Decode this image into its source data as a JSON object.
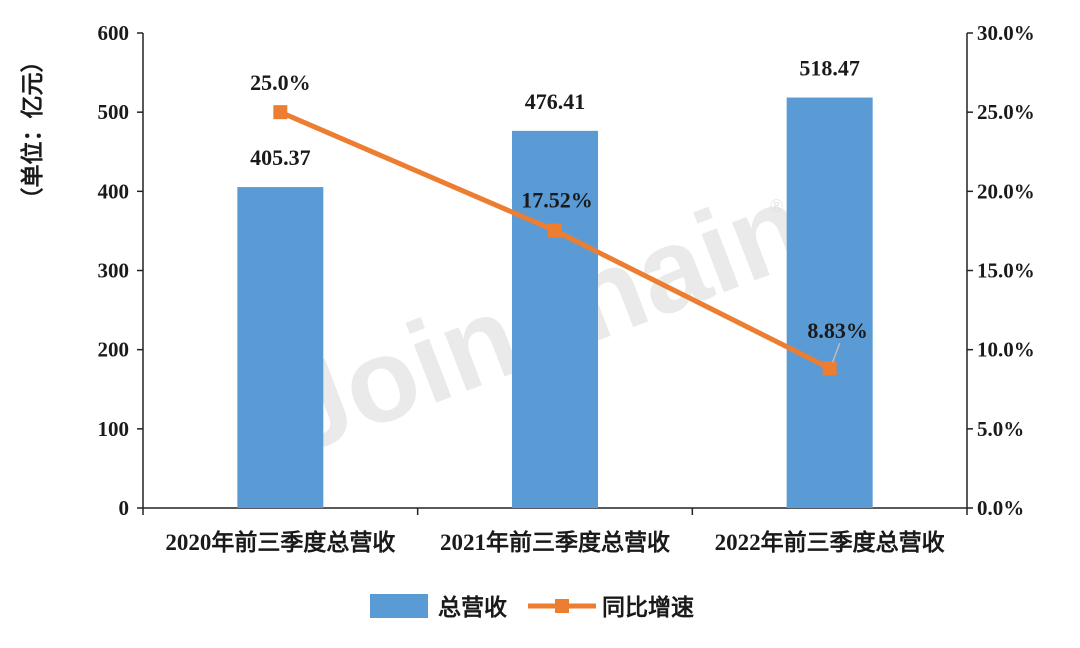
{
  "chart_data": {
    "type": "bar",
    "categories": [
      "2020年前三季度总营收",
      "2021年前三季度总营收",
      "2022年前三季度总营收"
    ],
    "series": [
      {
        "name": "总营收",
        "type": "bar",
        "axis": "left",
        "values": [
          405.37,
          476.41,
          518.47
        ],
        "labels": [
          "405.37",
          "476.41",
          "518.47"
        ],
        "color": "#5b9bd5"
      },
      {
        "name": "同比增速",
        "type": "line",
        "axis": "right",
        "values": [
          25.0,
          17.52,
          8.83
        ],
        "labels": [
          "25.0%",
          "17.52%",
          "8.83%"
        ],
        "color": "#ed7d31"
      }
    ],
    "ylabel": "（单位：亿元）",
    "ylim": [
      0,
      600
    ],
    "yticks": [
      "0",
      "100",
      "200",
      "300",
      "400",
      "500",
      "600"
    ],
    "y2lim": [
      0,
      30
    ],
    "y2ticks": [
      "0.0%",
      "5.0%",
      "10.0%",
      "15.0%",
      "20.0%",
      "25.0%",
      "30.0%"
    ],
    "legend_position": "bottom",
    "grid": false,
    "watermark": "Joinchain"
  }
}
